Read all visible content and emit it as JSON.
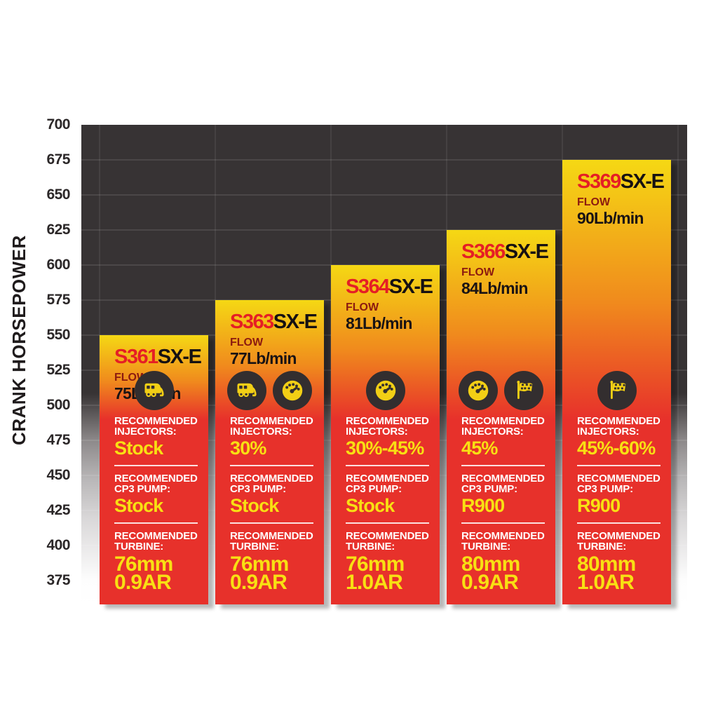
{
  "chart_data": {
    "type": "bar",
    "title": "",
    "xlabel": "",
    "ylabel": "CRANK HORSEPOWER",
    "ylim": [
      375,
      700
    ],
    "y_tick_step": 25,
    "grid": true,
    "legend": "none",
    "y_ticks": [
      700,
      675,
      650,
      625,
      600,
      575,
      550,
      525,
      500,
      475,
      450,
      425,
      400,
      375
    ],
    "categories": [
      "S361SX-E",
      "S363SX-E",
      "S364SX-E",
      "S366SX-E",
      "S369SX-E"
    ],
    "values": [
      550,
      575,
      600,
      625,
      675
    ],
    "bars": [
      {
        "model_prefix": "S361",
        "model_suffix": "SX-E",
        "horsepower": 550,
        "flow_label": "FLOW",
        "flow_value": "75Lb/min",
        "icons": [
          "camper-icon"
        ],
        "sections": [
          {
            "label_lines": [
              "RECOMMENDED",
              "INJECTORS:"
            ],
            "value_lines": [
              "Stock"
            ]
          },
          {
            "label_lines": [
              "RECOMMENDED",
              "CP3 PUMP:"
            ],
            "value_lines": [
              "Stock"
            ]
          },
          {
            "label_lines": [
              "RECOMMENDED",
              "TURBINE:"
            ],
            "value_lines": [
              "76mm",
              "0.9AR"
            ]
          }
        ]
      },
      {
        "model_prefix": "S363",
        "model_suffix": "SX-E",
        "horsepower": 575,
        "flow_label": "FLOW",
        "flow_value": "77Lb/min",
        "icons": [
          "camper-icon",
          "gauge-icon"
        ],
        "sections": [
          {
            "label_lines": [
              "RECOMMENDED",
              "INJECTORS:"
            ],
            "value_lines": [
              "30%"
            ]
          },
          {
            "label_lines": [
              "RECOMMENDED",
              "CP3 PUMP:"
            ],
            "value_lines": [
              "Stock"
            ]
          },
          {
            "label_lines": [
              "RECOMMENDED",
              "TURBINE:"
            ],
            "value_lines": [
              "76mm",
              "0.9AR"
            ]
          }
        ]
      },
      {
        "model_prefix": "S364",
        "model_suffix": "SX-E",
        "horsepower": 600,
        "flow_label": "FLOW",
        "flow_value": "81Lb/min",
        "icons": [
          "gauge-icon"
        ],
        "sections": [
          {
            "label_lines": [
              "RECOMMENDED",
              "INJECTORS:"
            ],
            "value_lines": [
              "30%-45%"
            ]
          },
          {
            "label_lines": [
              "RECOMMENDED",
              "CP3 PUMP:"
            ],
            "value_lines": [
              "Stock"
            ]
          },
          {
            "label_lines": [
              "RECOMMENDED",
              "TURBINE:"
            ],
            "value_lines": [
              "76mm",
              "1.0AR"
            ]
          }
        ]
      },
      {
        "model_prefix": "S366",
        "model_suffix": "SX-E",
        "horsepower": 625,
        "flow_label": "FLOW",
        "flow_value": "84Lb/min",
        "icons": [
          "gauge-icon",
          "flag-icon"
        ],
        "sections": [
          {
            "label_lines": [
              "RECOMMENDED",
              "INJECTORS:"
            ],
            "value_lines": [
              "45%"
            ]
          },
          {
            "label_lines": [
              "RECOMMENDED",
              "CP3 PUMP:"
            ],
            "value_lines": [
              "R900"
            ]
          },
          {
            "label_lines": [
              "RECOMMENDED",
              "TURBINE:"
            ],
            "value_lines": [
              "80mm",
              "0.9AR"
            ]
          }
        ]
      },
      {
        "model_prefix": "S369",
        "model_suffix": "SX-E",
        "horsepower": 675,
        "flow_label": "FLOW",
        "flow_value": "90Lb/min",
        "icons": [
          "flag-icon"
        ],
        "sections": [
          {
            "label_lines": [
              "RECOMMENDED",
              "INJECTORS:"
            ],
            "value_lines": [
              "45%-60%"
            ]
          },
          {
            "label_lines": [
              "RECOMMENDED",
              "CP3 PUMP:"
            ],
            "value_lines": [
              "R900"
            ]
          },
          {
            "label_lines": [
              "RECOMMENDED",
              "TURBINE:"
            ],
            "value_lines": [
              "80mm",
              "1.0AR"
            ]
          }
        ]
      }
    ]
  },
  "colors": {
    "bar_red": "#e7312b",
    "bar_orange": "#f08a1d",
    "bar_yellow": "#f5d814",
    "model_red": "#e51e25",
    "model_black": "#161112",
    "flow_label_red": "#8c1a10",
    "value_yellow": "#f8e013",
    "plot_dark": "#373334",
    "icon_circle_dark": "#332e2f",
    "icon_glyph_yellow": "#f2cf15"
  }
}
